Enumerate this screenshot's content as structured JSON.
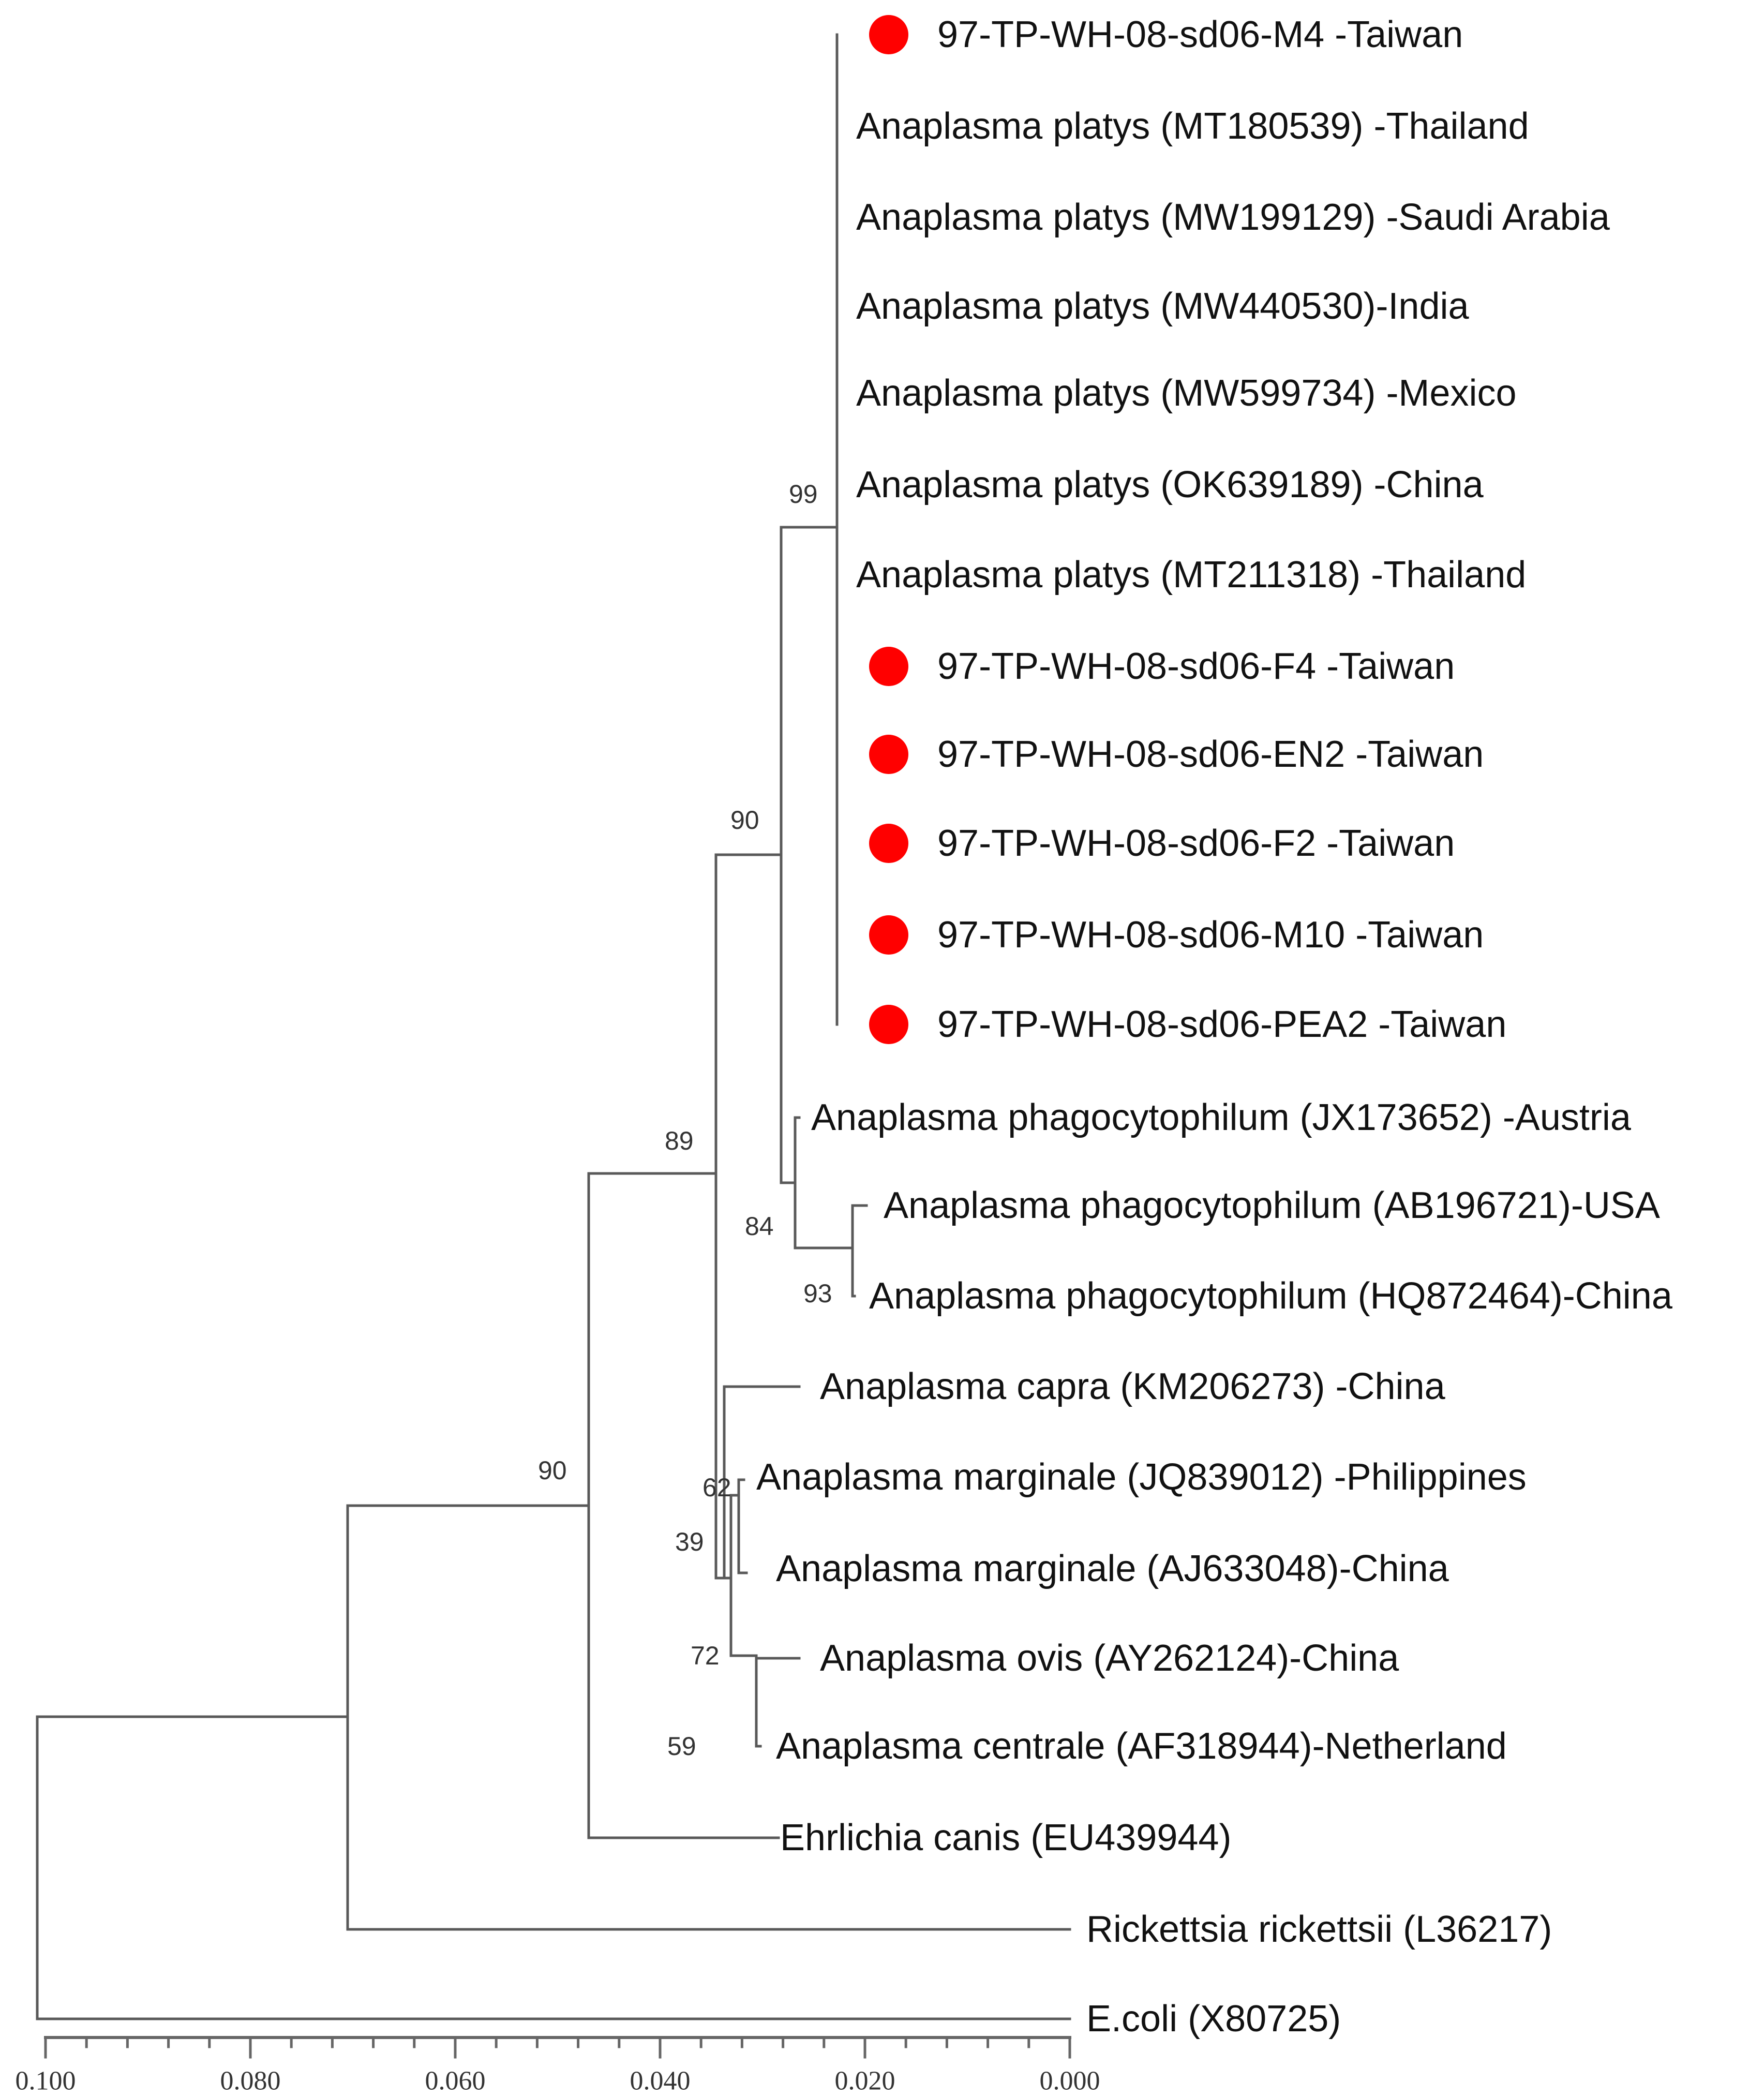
{
  "tree": {
    "marker_color": "#ff0000",
    "leaves": [
      {
        "label": "97-TP-WH-08-sd06-M4 -Taiwan",
        "marked": true
      },
      {
        "label": "Anaplasma platys (MT180539) -Thailand",
        "marked": false
      },
      {
        "label": "Anaplasma platys (MW199129) -Saudi Arabia",
        "marked": false
      },
      {
        "label": "Anaplasma platys (MW440530)-India",
        "marked": false
      },
      {
        "label": "Anaplasma platys (MW599734) -Mexico",
        "marked": false
      },
      {
        "label": "Anaplasma platys (OK639189) -China",
        "marked": false
      },
      {
        "label": "Anaplasma platys (MT211318) -Thailand",
        "marked": false
      },
      {
        "label": "97-TP-WH-08-sd06-F4 -Taiwan",
        "marked": true
      },
      {
        "label": "97-TP-WH-08-sd06-EN2 -Taiwan",
        "marked": true
      },
      {
        "label": "97-TP-WH-08-sd06-F2 -Taiwan",
        "marked": true
      },
      {
        "label": "97-TP-WH-08-sd06-M10 -Taiwan",
        "marked": true
      },
      {
        "label": "97-TP-WH-08-sd06-PEA2 -Taiwan",
        "marked": true
      },
      {
        "label": "Anaplasma phagocytophilum (JX173652) -Austria",
        "marked": false
      },
      {
        "label": "Anaplasma phagocytophilum (AB196721)-USA",
        "marked": false
      },
      {
        "label": "Anaplasma phagocytophilum (HQ872464)-China",
        "marked": false
      },
      {
        "label": "Anaplasma capra (KM206273) -China",
        "marked": false
      },
      {
        "label": "Anaplasma marginale (JQ839012) -Philippines",
        "marked": false
      },
      {
        "label": "Anaplasma marginale (AJ633048)-China",
        "marked": false
      },
      {
        "label": "Anaplasma ovis (AY262124)-China",
        "marked": false
      },
      {
        "label": "Anaplasma centrale (AF318944)-Netherland",
        "marked": false
      },
      {
        "label": "Ehrlichia canis (EU439944)",
        "marked": false
      },
      {
        "label": "Rickettsia rickettsii (L36217)",
        "marked": false
      },
      {
        "label": "E.coli (X80725)",
        "marked": false
      }
    ],
    "support_values": [
      "99",
      "90",
      "89",
      "84",
      "93",
      "90",
      "62",
      "39",
      "72",
      "59"
    ]
  },
  "scale_axis": {
    "ticks": [
      "0.100",
      "0.080",
      "0.060",
      "0.040",
      "0.020",
      "0.000"
    ]
  }
}
